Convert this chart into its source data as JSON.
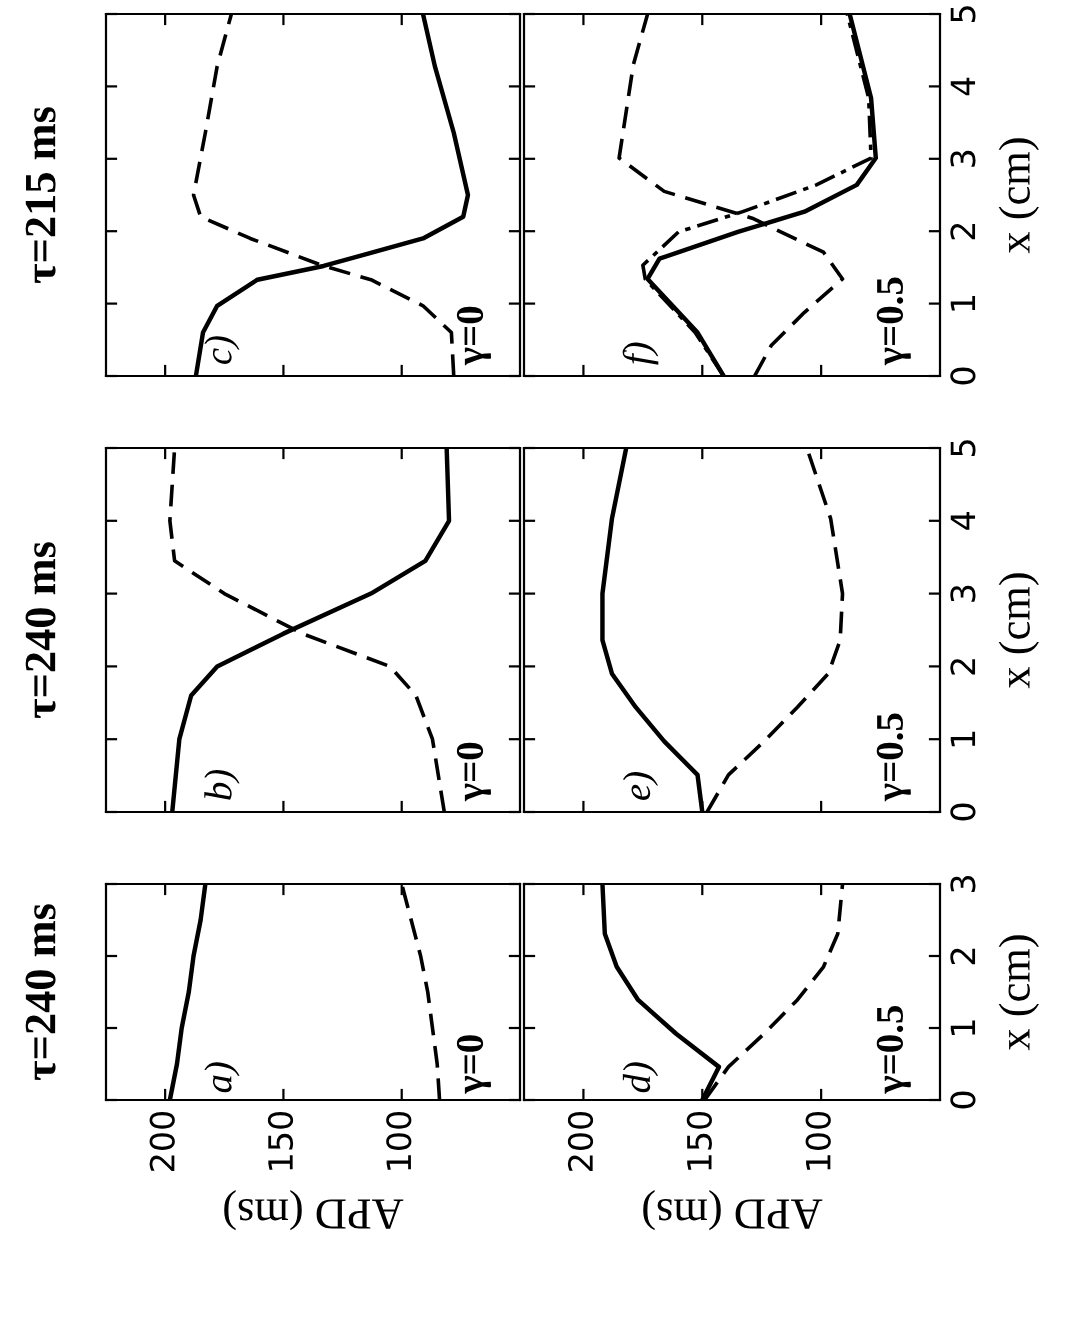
{
  "chart_data": [
    {
      "type": "line",
      "title": "τ=240 ms",
      "xlabel": "APD (ms)",
      "xlim": [
        225,
        50
      ],
      "ylim": [
        0,
        3
      ],
      "xticks": [
        200,
        150,
        100
      ],
      "yticks": [
        0,
        1,
        2,
        3
      ],
      "tick_labels": "x",
      "annotations": [
        "a)",
        "γ=0"
      ],
      "series": [
        {
          "color": "#000000",
          "line_style": "solid",
          "x": [
            198,
            195,
            193,
            190,
            188,
            185,
            183
          ],
          "values": [
            0,
            0.5,
            1,
            1.5,
            2,
            2.5,
            3
          ]
        },
        {
          "color": "#000000",
          "line_style": "dashed",
          "x": [
            84,
            85,
            87,
            89,
            92,
            96,
            100
          ],
          "values": [
            0,
            0.5,
            1,
            1.5,
            2,
            2.5,
            3
          ]
        }
      ]
    },
    {
      "type": "line",
      "title": "τ=240 ms",
      "xlim": [
        225,
        50
      ],
      "ylim": [
        0,
        5
      ],
      "xticks": [
        200,
        150,
        100
      ],
      "yticks": [
        0,
        1,
        2,
        3,
        4,
        5
      ],
      "tick_labels": false,
      "annotations": [
        "b)",
        "γ=0"
      ],
      "series": [
        {
          "color": "#000000",
          "line_style": "solid",
          "x": [
            197,
            194,
            189,
            178,
            150,
            113,
            90,
            80,
            81
          ],
          "values": [
            0,
            1,
            1.6,
            2,
            2.45,
            3,
            3.45,
            4,
            5
          ]
        },
        {
          "color": "#000000",
          "line_style": "dashed",
          "x": [
            82,
            87,
            94,
            105,
            142,
            175,
            196,
            198,
            196
          ],
          "values": [
            0,
            1,
            1.6,
            2,
            2.45,
            3,
            3.45,
            4,
            5
          ]
        }
      ]
    },
    {
      "type": "line",
      "title": "τ=215 ms",
      "xlim": [
        225,
        50
      ],
      "ylim": [
        0,
        5
      ],
      "xticks": [
        200,
        150,
        100
      ],
      "yticks": [
        0,
        1,
        2,
        3,
        4,
        5
      ],
      "tick_labels": false,
      "annotations": [
        "c)",
        "γ=0"
      ],
      "series": [
        {
          "color": "#000000",
          "line_style": "solid",
          "x": [
            187,
            184,
            178,
            161,
            133,
            91,
            74,
            72,
            78,
            86,
            91
          ],
          "values": [
            0,
            0.6,
            0.97,
            1.33,
            1.52,
            1.9,
            2.2,
            2.5,
            3.36,
            4.28,
            5
          ]
        },
        {
          "color": "#000000",
          "line_style": "dashed",
          "x": [
            78,
            79,
            91,
            113,
            133,
            164,
            185,
            188,
            183,
            178,
            172
          ],
          "values": [
            0,
            0.6,
            0.97,
            1.33,
            1.52,
            1.9,
            2.2,
            2.5,
            3.36,
            4.28,
            5
          ]
        }
      ]
    },
    {
      "type": "line",
      "xlabel": "APD (ms)",
      "ylabel": "x (cm)",
      "xlim": [
        225,
        50
      ],
      "ylim": [
        0,
        3
      ],
      "xticks": [
        200,
        150,
        100
      ],
      "yticks": [
        0,
        1,
        2,
        3
      ],
      "annotations": [
        "d)",
        "γ=0.5"
      ],
      "series": [
        {
          "color": "#000000",
          "line_style": "solid",
          "x": [
            150,
            143,
            161,
            177,
            186,
            191,
            192
          ],
          "values": [
            0,
            0.46,
            0.92,
            1.39,
            1.85,
            2.31,
            3
          ]
        },
        {
          "color": "#000000",
          "line_style": "dashed",
          "x": [
            149,
            139,
            124,
            110,
            99,
            93,
            91
          ],
          "values": [
            0,
            0.46,
            0.92,
            1.39,
            1.85,
            2.31,
            3
          ]
        }
      ]
    },
    {
      "type": "line",
      "ylabel": "x (cm)",
      "xlim": [
        225,
        50
      ],
      "ylim": [
        0,
        5
      ],
      "xticks": [
        200,
        150,
        100
      ],
      "yticks": [
        0,
        1,
        2,
        3,
        4,
        5
      ],
      "tick_labels": "y",
      "annotations": [
        "e)",
        "γ=0.5"
      ],
      "series": [
        {
          "color": "#000000",
          "line_style": "solid",
          "x": [
            150,
            152,
            166,
            178,
            188,
            192,
            192,
            188,
            182
          ],
          "values": [
            0,
            0.51,
            0.97,
            1.44,
            1.9,
            2.36,
            3,
            4.03,
            5
          ]
        },
        {
          "color": "#000000",
          "line_style": "dashed",
          "x": [
            148,
            139,
            124,
            110,
            97,
            92,
            91,
            96,
            106
          ],
          "values": [
            0,
            0.51,
            0.97,
            1.44,
            1.9,
            2.36,
            3,
            4.03,
            5
          ]
        }
      ]
    },
    {
      "type": "line",
      "ylabel": "x (cm)",
      "xlim": [
        225,
        50
      ],
      "ylim": [
        0,
        5
      ],
      "xticks": [
        200,
        150,
        100
      ],
      "yticks": [
        0,
        1,
        2,
        3,
        4,
        5
      ],
      "tick_labels": "y",
      "annotations": [
        "f)",
        "γ=0.5"
      ],
      "series": [
        {
          "color": "#000000",
          "line_style": "solid",
          "x": [
            141,
            152,
            173,
            168,
            135,
            107,
            85,
            77,
            79,
            88
          ],
          "values": [
            0,
            0.6,
            1.34,
            1.62,
            1.99,
            2.27,
            2.64,
            3.01,
            3.84,
            5
          ]
        },
        {
          "color": "#000000",
          "line_style": "dashdot",
          "x": [
            141,
            153,
            174,
            175,
            160,
            133,
            102,
            79,
            80,
            89
          ],
          "values": [
            0,
            0.6,
            1.34,
            1.53,
            1.99,
            2.27,
            2.64,
            3.01,
            3.84,
            5
          ]
        },
        {
          "color": "#000000",
          "line_style": "dashed",
          "x": [
            128,
            121,
            107,
            91,
            99,
            129,
            166,
            185,
            179,
            173
          ],
          "values": [
            0,
            0.42,
            0.88,
            1.34,
            1.71,
            2.18,
            2.55,
            3.01,
            4.3,
            5
          ]
        }
      ]
    }
  ]
}
